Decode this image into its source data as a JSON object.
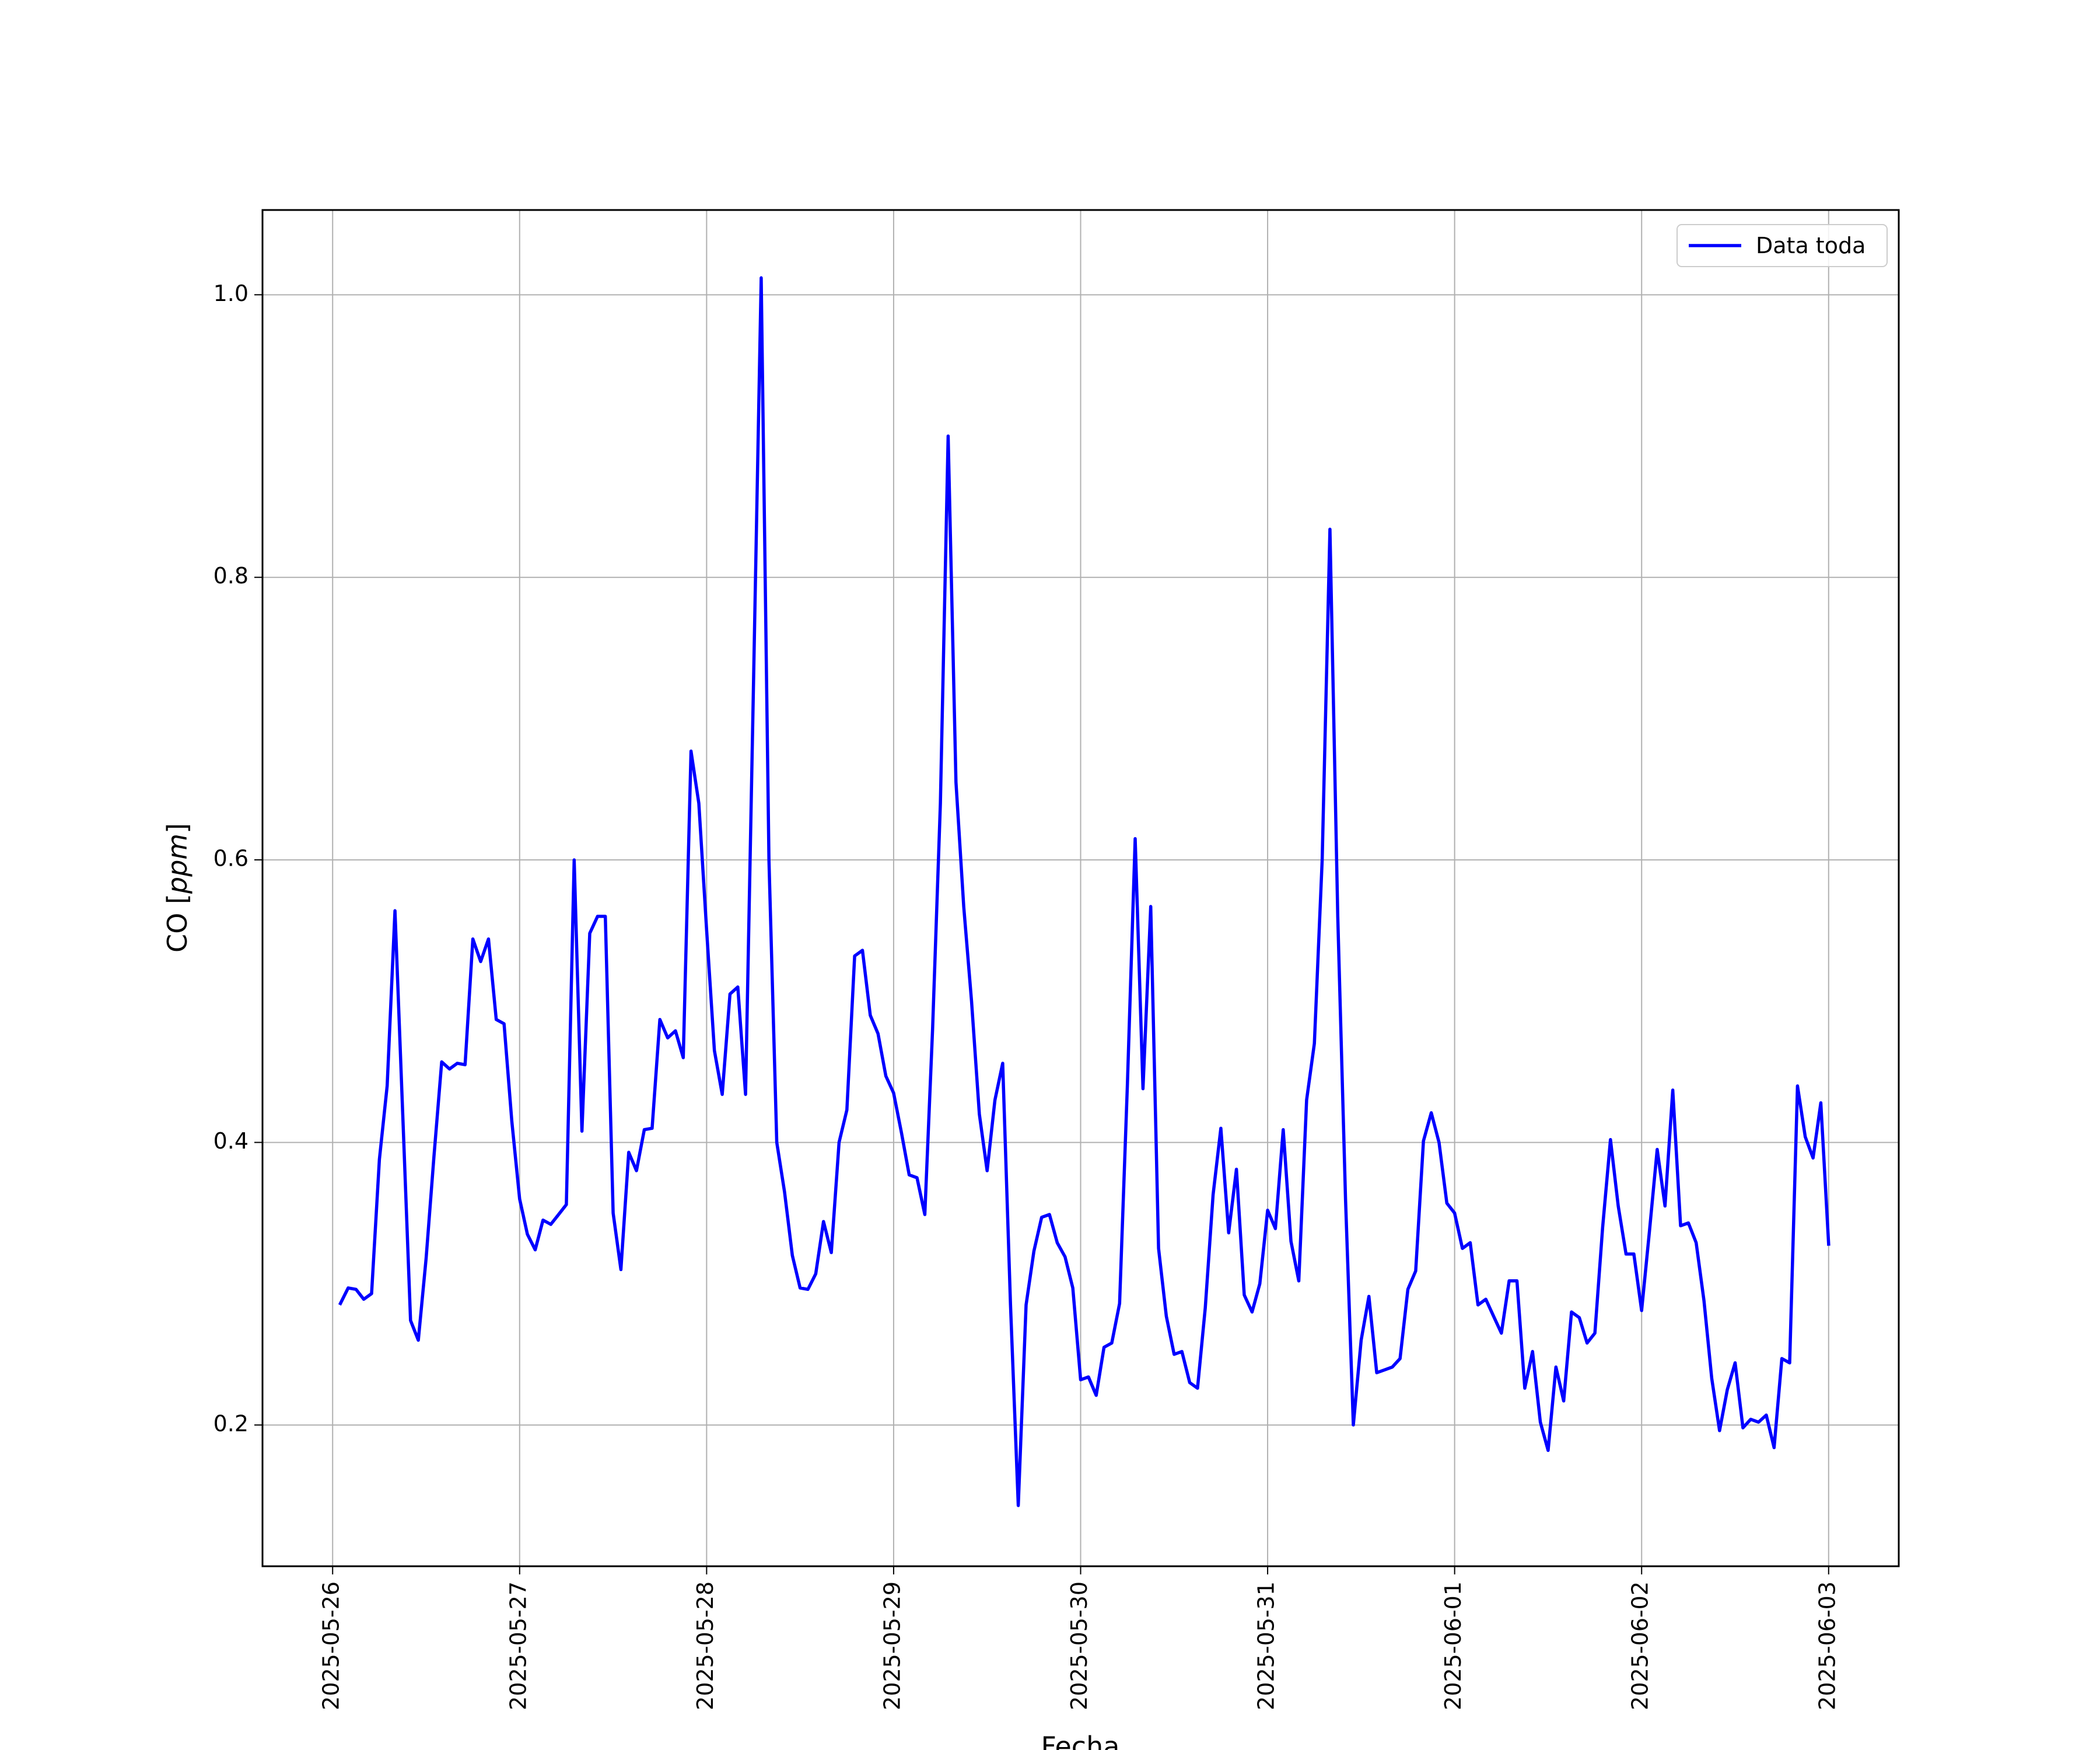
{
  "chart_data": {
    "type": "line",
    "xlabel": "Fecha",
    "ylabel": "CO ",
    "ylabel_unit": "ppm",
    "ylim": [
      0.1,
      1.06
    ],
    "xlim": [
      "2025-05-25 15:00",
      "2025-06-03 09:00"
    ],
    "x_ticks": [
      "2025-05-26",
      "2025-05-27",
      "2025-05-28",
      "2025-05-29",
      "2025-05-30",
      "2025-05-31",
      "2025-06-01",
      "2025-06-02",
      "2025-06-03"
    ],
    "y_ticks": [
      "0.2",
      "0.4",
      "0.6",
      "0.8",
      "1.0"
    ],
    "grid": true,
    "legend_position": "top-right",
    "series": [
      {
        "name": "Data toda",
        "color": "#0000ff",
        "x": [
          "2025-05-26 01:00",
          "2025-05-26 02:00",
          "2025-05-26 03:00",
          "2025-05-26 04:00",
          "2025-05-26 05:00",
          "2025-05-26 06:00",
          "2025-05-26 07:00",
          "2025-05-26 08:00",
          "2025-05-26 09:00",
          "2025-05-26 10:00",
          "2025-05-26 11:00",
          "2025-05-26 12:00",
          "2025-05-26 13:00",
          "2025-05-26 14:00",
          "2025-05-26 15:00",
          "2025-05-26 16:00",
          "2025-05-26 17:00",
          "2025-05-26 18:00",
          "2025-05-26 19:00",
          "2025-05-26 20:00",
          "2025-05-26 21:00",
          "2025-05-26 22:00",
          "2025-05-26 23:00",
          "2025-05-27 00:00",
          "2025-05-27 01:00",
          "2025-05-27 02:00",
          "2025-05-27 03:00",
          "2025-05-27 04:00",
          "2025-05-27 05:00",
          "2025-05-27 06:00",
          "2025-05-27 07:00",
          "2025-05-27 08:00",
          "2025-05-27 09:00",
          "2025-05-27 10:00",
          "2025-05-27 11:00",
          "2025-05-27 12:00",
          "2025-05-27 13:00",
          "2025-05-27 14:00",
          "2025-05-27 15:00",
          "2025-05-27 16:00",
          "2025-05-27 17:00",
          "2025-05-27 18:00",
          "2025-05-27 19:00",
          "2025-05-27 20:00",
          "2025-05-27 21:00",
          "2025-05-27 22:00",
          "2025-05-27 23:00",
          "2025-05-28 00:00",
          "2025-05-28 01:00",
          "2025-05-28 02:00",
          "2025-05-28 03:00",
          "2025-05-28 04:00",
          "2025-05-28 05:00",
          "2025-05-28 06:00",
          "2025-05-28 07:00",
          "2025-05-28 08:00",
          "2025-05-28 09:00",
          "2025-05-28 10:00",
          "2025-05-28 11:00",
          "2025-05-28 12:00",
          "2025-05-28 13:00",
          "2025-05-28 14:00",
          "2025-05-28 15:00",
          "2025-05-28 16:00",
          "2025-05-28 17:00",
          "2025-05-28 18:00",
          "2025-05-28 19:00",
          "2025-05-28 20:00",
          "2025-05-28 21:00",
          "2025-05-28 22:00",
          "2025-05-28 23:00",
          "2025-05-29 00:00",
          "2025-05-29 01:00",
          "2025-05-29 02:00",
          "2025-05-29 03:00",
          "2025-05-29 04:00",
          "2025-05-29 05:00",
          "2025-05-29 06:00",
          "2025-05-29 07:00",
          "2025-05-29 08:00",
          "2025-05-29 09:00",
          "2025-05-29 10:00",
          "2025-05-29 11:00",
          "2025-05-29 12:00",
          "2025-05-29 13:00",
          "2025-05-29 14:00",
          "2025-05-29 15:00",
          "2025-05-29 16:00",
          "2025-05-29 17:00",
          "2025-05-29 18:00",
          "2025-05-29 19:00",
          "2025-05-29 20:00",
          "2025-05-29 21:00",
          "2025-05-29 22:00",
          "2025-05-29 23:00",
          "2025-05-30 00:00",
          "2025-05-30 01:00",
          "2025-05-30 02:00",
          "2025-05-30 03:00",
          "2025-05-30 04:00",
          "2025-05-30 05:00",
          "2025-05-30 06:00",
          "2025-05-30 07:00",
          "2025-05-30 08:00",
          "2025-05-30 09:00",
          "2025-05-30 10:00",
          "2025-05-30 11:00",
          "2025-05-30 12:00",
          "2025-05-30 13:00",
          "2025-05-30 14:00",
          "2025-05-30 15:00",
          "2025-05-30 16:00",
          "2025-05-30 17:00",
          "2025-05-30 18:00",
          "2025-05-30 19:00",
          "2025-05-30 20:00",
          "2025-05-30 21:00",
          "2025-05-30 22:00",
          "2025-05-30 23:00",
          "2025-05-31 00:00",
          "2025-05-31 01:00",
          "2025-05-31 02:00",
          "2025-05-31 03:00",
          "2025-05-31 04:00",
          "2025-05-31 05:00",
          "2025-05-31 06:00",
          "2025-05-31 07:00",
          "2025-05-31 08:00",
          "2025-05-31 09:00",
          "2025-05-31 10:00",
          "2025-05-31 11:00",
          "2025-05-31 12:00",
          "2025-05-31 13:00",
          "2025-05-31 14:00",
          "2025-05-31 15:00",
          "2025-05-31 16:00",
          "2025-05-31 17:00",
          "2025-05-31 18:00",
          "2025-05-31 19:00",
          "2025-05-31 20:00",
          "2025-05-31 21:00",
          "2025-05-31 22:00",
          "2025-05-31 23:00",
          "2025-06-01 00:00",
          "2025-06-01 01:00",
          "2025-06-01 02:00",
          "2025-06-01 03:00",
          "2025-06-01 04:00",
          "2025-06-01 05:00",
          "2025-06-01 06:00",
          "2025-06-01 07:00",
          "2025-06-01 08:00",
          "2025-06-01 09:00",
          "2025-06-01 10:00",
          "2025-06-01 11:00",
          "2025-06-01 12:00",
          "2025-06-01 13:00",
          "2025-06-01 14:00",
          "2025-06-01 15:00",
          "2025-06-01 16:00",
          "2025-06-01 17:00",
          "2025-06-01 18:00",
          "2025-06-01 19:00",
          "2025-06-01 20:00",
          "2025-06-01 21:00",
          "2025-06-01 22:00",
          "2025-06-01 23:00",
          "2025-06-02 00:00",
          "2025-06-02 01:00",
          "2025-06-02 02:00",
          "2025-06-02 03:00",
          "2025-06-02 04:00",
          "2025-06-02 05:00",
          "2025-06-02 06:00",
          "2025-06-02 07:00",
          "2025-06-02 08:00",
          "2025-06-02 09:00",
          "2025-06-02 10:00",
          "2025-06-02 11:00",
          "2025-06-02 12:00",
          "2025-06-02 13:00",
          "2025-06-02 14:00",
          "2025-06-02 15:00",
          "2025-06-02 16:00",
          "2025-06-02 17:00",
          "2025-06-02 18:00",
          "2025-06-02 19:00",
          "2025-06-02 20:00",
          "2025-06-02 21:00",
          "2025-06-02 22:00",
          "2025-06-02 23:00",
          "2025-06-03 00:00"
        ],
        "y": [
          0.286,
          0.297,
          0.296,
          0.289,
          0.293,
          0.388,
          0.44,
          0.564,
          0.42,
          0.274,
          0.26,
          0.318,
          0.39,
          0.457,
          0.452,
          0.456,
          0.455,
          0.544,
          0.528,
          0.544,
          0.487,
          0.484,
          0.415,
          0.36,
          0.335,
          0.324,
          0.345,
          0.342,
          0.349,
          0.356,
          0.6,
          0.408,
          0.548,
          0.56,
          0.56,
          0.35,
          0.31,
          0.393,
          0.38,
          0.409,
          0.41,
          0.487,
          0.474,
          0.479,
          0.46,
          0.677,
          0.64,
          0.55,
          0.465,
          0.434,
          0.505,
          0.51,
          0.434,
          0.72,
          1.012,
          0.6,
          0.4,
          0.365,
          0.32,
          0.297,
          0.296,
          0.307,
          0.344,
          0.322,
          0.4,
          0.423,
          0.532,
          0.536,
          0.49,
          0.477,
          0.447,
          0.435,
          0.407,
          0.377,
          0.375,
          0.349,
          0.48,
          0.64,
          0.9,
          0.655,
          0.567,
          0.5,
          0.42,
          0.38,
          0.43,
          0.456,
          0.285,
          0.143,
          0.285,
          0.323,
          0.347,
          0.349,
          0.329,
          0.319,
          0.297,
          0.232,
          0.234,
          0.221,
          0.255,
          0.258,
          0.286,
          0.44,
          0.615,
          0.438,
          0.567,
          0.325,
          0.277,
          0.25,
          0.252,
          0.23,
          0.226,
          0.283,
          0.363,
          0.41,
          0.336,
          0.381,
          0.292,
          0.28,
          0.3,
          0.352,
          0.339,
          0.409,
          0.33,
          0.302,
          0.43,
          0.47,
          0.6,
          0.834,
          0.56,
          0.36,
          0.2,
          0.26,
          0.291,
          0.237,
          0.239,
          0.241,
          0.247,
          0.296,
          0.309,
          0.401,
          0.421,
          0.4,
          0.357,
          0.35,
          0.325,
          0.329,
          0.285,
          0.289,
          0.277,
          0.265,
          0.302,
          0.302,
          0.226,
          0.252,
          0.202,
          0.182,
          0.241,
          0.217,
          0.28,
          0.276,
          0.258,
          0.265,
          0.34,
          0.402,
          0.355,
          0.321,
          0.321,
          0.281,
          0.337,
          0.395,
          0.355,
          0.437,
          0.341,
          0.343,
          0.329,
          0.288,
          0.233,
          0.196,
          0.225,
          0.244,
          0.198,
          0.204,
          0.202,
          0.207,
          0.184,
          0.247,
          0.244,
          0.44,
          0.404,
          0.389,
          0.428,
          0.328
        ]
      }
    ]
  }
}
